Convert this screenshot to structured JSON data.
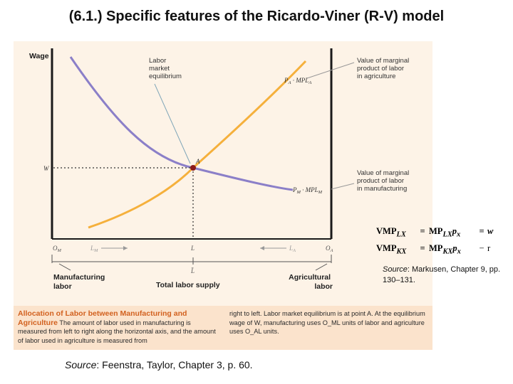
{
  "slide": {
    "title": "(6.1.) Specific features of the Ricardo-Viner (R-V) model"
  },
  "figure": {
    "axis_label_wage": "Wage",
    "label_labor_market_eq": "Labor market equilibrium",
    "label_vmp_agriculture": "Value of marginal product of labor in agriculture",
    "label_vmp_manufacturing": "Value of marginal product of labor in manufacturing",
    "curve_label_agriculture": "P_A · MPL_A",
    "curve_label_manufacturing": "P_M · MPL_M",
    "point_label_a": "A",
    "wage_label_w": "W",
    "axis_left_origin": "O_M",
    "axis_right_origin": "O_A",
    "axis_mid_l": "L",
    "axis_below_lbar": "L̄",
    "axis_left_arrow_label": "L_M",
    "axis_right_arrow_label": "L_A",
    "label_manufacturing_labor": "Manufacturing labor",
    "label_total_labor_supply": "Total labor supply",
    "label_agricultural_labor": "Agricultural labor",
    "caption": {
      "title": "Allocation of Labor between Manufacturing and Agriculture",
      "text_left": "The amount of labor used in manufacturing is measured from left to right along the horizontal axis, and the amount of labor used in agriculture is measured from",
      "text_right": "right to left. Labor market equilibrium is at point A. At the equilibrium wage of W, manufacturing uses O_ML units of labor and agriculture uses O_AL units."
    }
  },
  "equations": [
    {
      "lhs_base": "VMP",
      "lhs_sub": "LX",
      "rhs_base": "MP",
      "rhs_sub": "LX",
      "price_base": "p",
      "price_sub": "x",
      "op": "=",
      "result": "w"
    },
    {
      "lhs_base": "VMP",
      "lhs_sub": "KX",
      "rhs_base": "MP",
      "rhs_sub": "KX",
      "price_base": "p",
      "price_sub": "x",
      "op": "−",
      "result": "r"
    }
  ],
  "sources": {
    "right_label": "Source",
    "right_text": ": Markusen, Chapter 9, pp. 130–131.",
    "bottom_label": "Source",
    "bottom_text": ": Feenstra, Taylor, Chapter 3, p. 60."
  },
  "colors": {
    "manufacturing_curve": "#8b7fc8",
    "agriculture_curve": "#f5b03c",
    "caption_title": "#d2611f",
    "caption_bg": "#fbe3cc",
    "figure_bg": "#fdf3e7",
    "point_a": "#8b1a1a"
  }
}
